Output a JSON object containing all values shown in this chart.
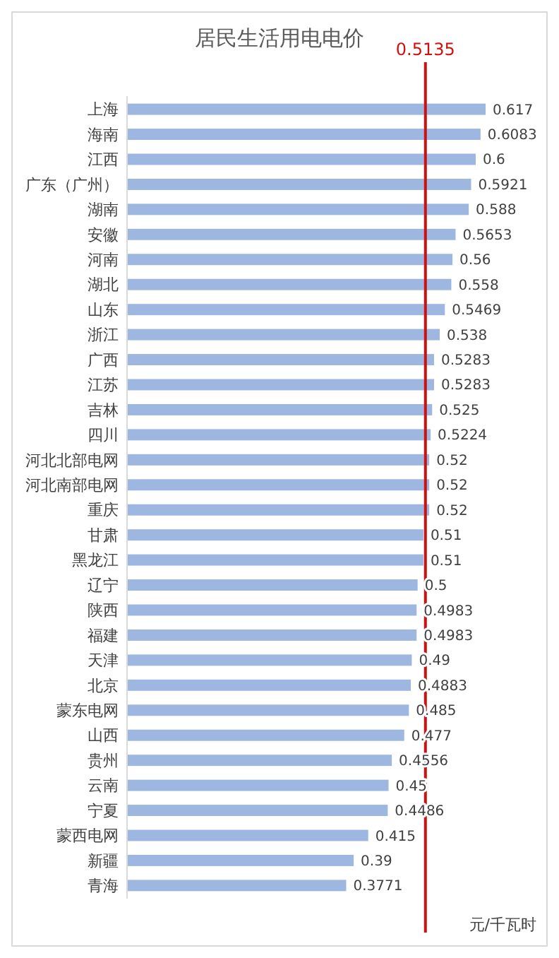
{
  "chart_data": {
    "type": "bar",
    "orientation": "horizontal",
    "title": "居民生活用电电价",
    "categories": [
      "上海",
      "海南",
      "江西",
      "广东（广州）",
      "湖南",
      "安徽",
      "河南",
      "湖北",
      "山东",
      "浙江",
      "广西",
      "江苏",
      "吉林",
      "四川",
      "河北北部电网",
      "河北南部电网",
      "重庆",
      "甘肃",
      "黑龙江",
      "辽宁",
      "陕西",
      "福建",
      "天津",
      "北京",
      "蒙东电网",
      "山西",
      "贵州",
      "云南",
      "宁夏",
      "蒙西电网",
      "新疆",
      "青海"
    ],
    "values": [
      0.617,
      0.6083,
      0.6,
      0.5921,
      0.588,
      0.5653,
      0.56,
      0.558,
      0.5469,
      0.538,
      0.5283,
      0.5283,
      0.525,
      0.5224,
      0.52,
      0.52,
      0.52,
      0.51,
      0.51,
      0.5,
      0.4983,
      0.4983,
      0.49,
      0.4883,
      0.485,
      0.477,
      0.4556,
      0.45,
      0.4486,
      0.415,
      0.39,
      0.3771
    ],
    "color": "#9db7e0",
    "tick_labels": "y",
    "data_labels": true,
    "ref_lines": [
      {
        "axis": "x",
        "value": 0.5135,
        "label": "0.5135",
        "color": "#d01010"
      }
    ],
    "annotations": [
      "元/千瓦时"
    ]
  }
}
